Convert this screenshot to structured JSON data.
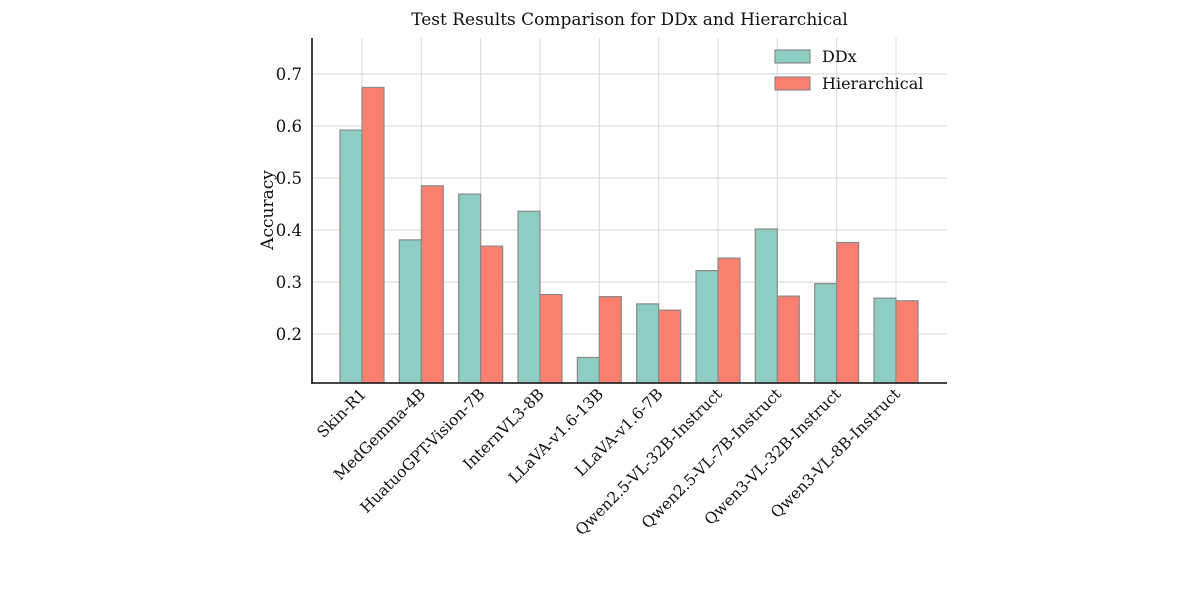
{
  "chart_data": {
    "type": "bar",
    "title": "Test Results Comparison for DDx and Hierarchical",
    "xlabel": "",
    "ylabel": "Accuracy",
    "categories": [
      "Skin-R1",
      "MedGemma-4B",
      "HuatuoGPT-Vision-7B",
      "InternVL3-8B",
      "LLaVA-v1.6-13B",
      "LLaVA-v1.6-7B",
      "Qwen2.5-VL-32B-Instruct",
      "Qwen2.5-VL-7B-Instruct",
      "Qwen3-VL-32B-Instruct",
      "Qwen3-VL-8B-Instruct"
    ],
    "series": [
      {
        "name": "DDx",
        "color": "#8DCDC3",
        "values": [
          0.592,
          0.381,
          0.469,
          0.436,
          0.155,
          0.258,
          0.322,
          0.402,
          0.297,
          0.269
        ]
      },
      {
        "name": "Hierarchical",
        "color": "#F9806F",
        "values": [
          0.674,
          0.485,
          0.369,
          0.276,
          0.272,
          0.246,
          0.346,
          0.273,
          0.376,
          0.264
        ]
      }
    ],
    "yticks": [
      0.2,
      0.3,
      0.4,
      0.5,
      0.6,
      0.7
    ],
    "ylim": [
      0.106,
      0.769
    ],
    "grid": true,
    "grid_color": "#DBDBDB",
    "bar_edge_color": "#8A8A8A",
    "axis_color": "#2B2B2B",
    "background": "#FFFFFF",
    "legend": {
      "position": "upper right",
      "labels": [
        "DDx",
        "Hierarchical"
      ]
    }
  }
}
